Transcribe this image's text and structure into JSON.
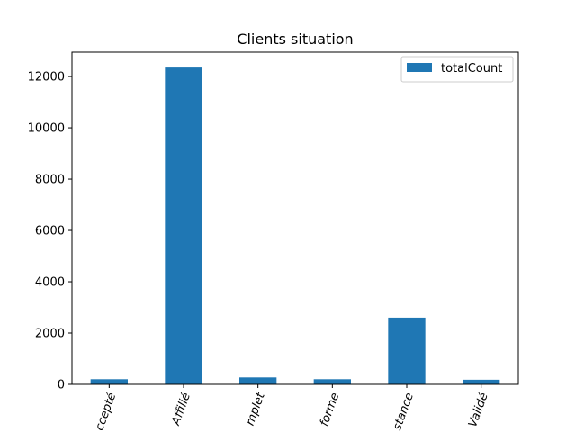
{
  "chart_data": {
    "type": "bar",
    "title": "Clients situation",
    "categories": [
      "ccepté",
      "Affilié",
      "mplet",
      "forme",
      "stance",
      "Validé"
    ],
    "series": [
      {
        "name": "totalCount",
        "values": [
          200,
          12350,
          270,
          200,
          2600,
          180
        ],
        "color": "#1f77b4"
      }
    ],
    "ylim": [
      0,
      12950
    ],
    "yticks": [
      0,
      2000,
      4000,
      6000,
      8000,
      10000,
      12000
    ],
    "legend_position": "top-right",
    "grid": false,
    "xlabel": "",
    "ylabel": ""
  }
}
